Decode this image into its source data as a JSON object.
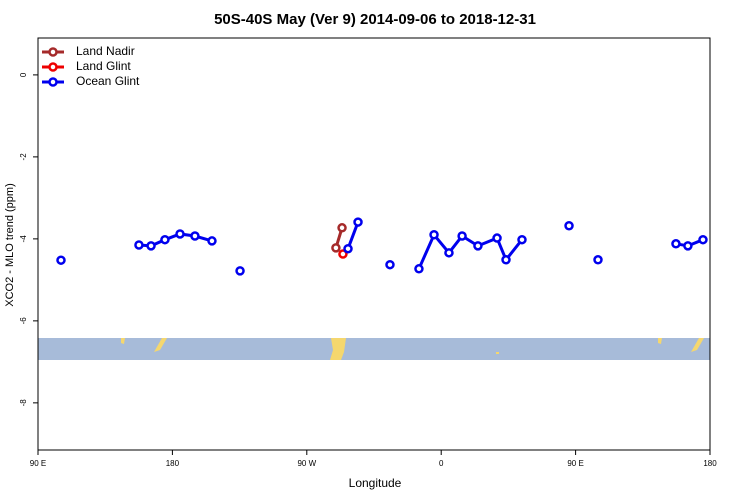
{
  "chart_data": {
    "type": "line",
    "title": "50S-40S May (Ver 9)   2014-09-06 to 2018-12-31",
    "x_label": "Longitude",
    "y_label": "XCO2 - MLO trend (ppm)",
    "xlim": [
      90,
      540
    ],
    "xticks": [
      {
        "value": 90,
        "label": "90 E"
      },
      {
        "value": 180,
        "label": "180"
      },
      {
        "value": 270,
        "label": "90 W"
      },
      {
        "value": 360,
        "label": "0"
      },
      {
        "value": 450,
        "label": "90 E"
      },
      {
        "value": 540,
        "label": "180"
      }
    ],
    "ylim": [
      -9.15,
      0.9
    ],
    "yticks": [
      0,
      -2,
      -4,
      -6,
      -8
    ],
    "legend": "top-left",
    "series": [
      {
        "name": "Land Nadir",
        "color": "#a52a2a",
        "x": [
          289.5,
          293.6
        ],
        "values": [
          -4.22,
          -3.73
        ]
      },
      {
        "name": "Land Glint",
        "color": "#ee0000",
        "x": [
          294.2
        ],
        "values": [
          -4.37
        ]
      },
      {
        "name": "Ocean Glint",
        "color": "#0000ee",
        "x": [
          105.4,
          null,
          157.6,
          165.7,
          175.0,
          185.1,
          195.1,
          206.5,
          null,
          225.3,
          null,
          297.6,
          304.3,
          null,
          325.7,
          null,
          345.1,
          355.2,
          365.2,
          374.0,
          384.6,
          397.4,
          403.4,
          414.1,
          null,
          445.6,
          null,
          465.0,
          null,
          517.2,
          525.2,
          535.3
        ],
        "values": [
          -4.52,
          null,
          -4.15,
          -4.17,
          -4.02,
          -3.88,
          -3.93,
          -4.05,
          null,
          -4.78,
          null,
          -4.24,
          -3.59,
          null,
          -4.63,
          null,
          -4.73,
          -3.9,
          -4.34,
          -3.93,
          -4.17,
          -3.98,
          -4.51,
          -4.02,
          null,
          -3.68,
          null,
          -4.51,
          null,
          -4.12,
          -4.17,
          -4.02
        ]
      }
    ]
  }
}
